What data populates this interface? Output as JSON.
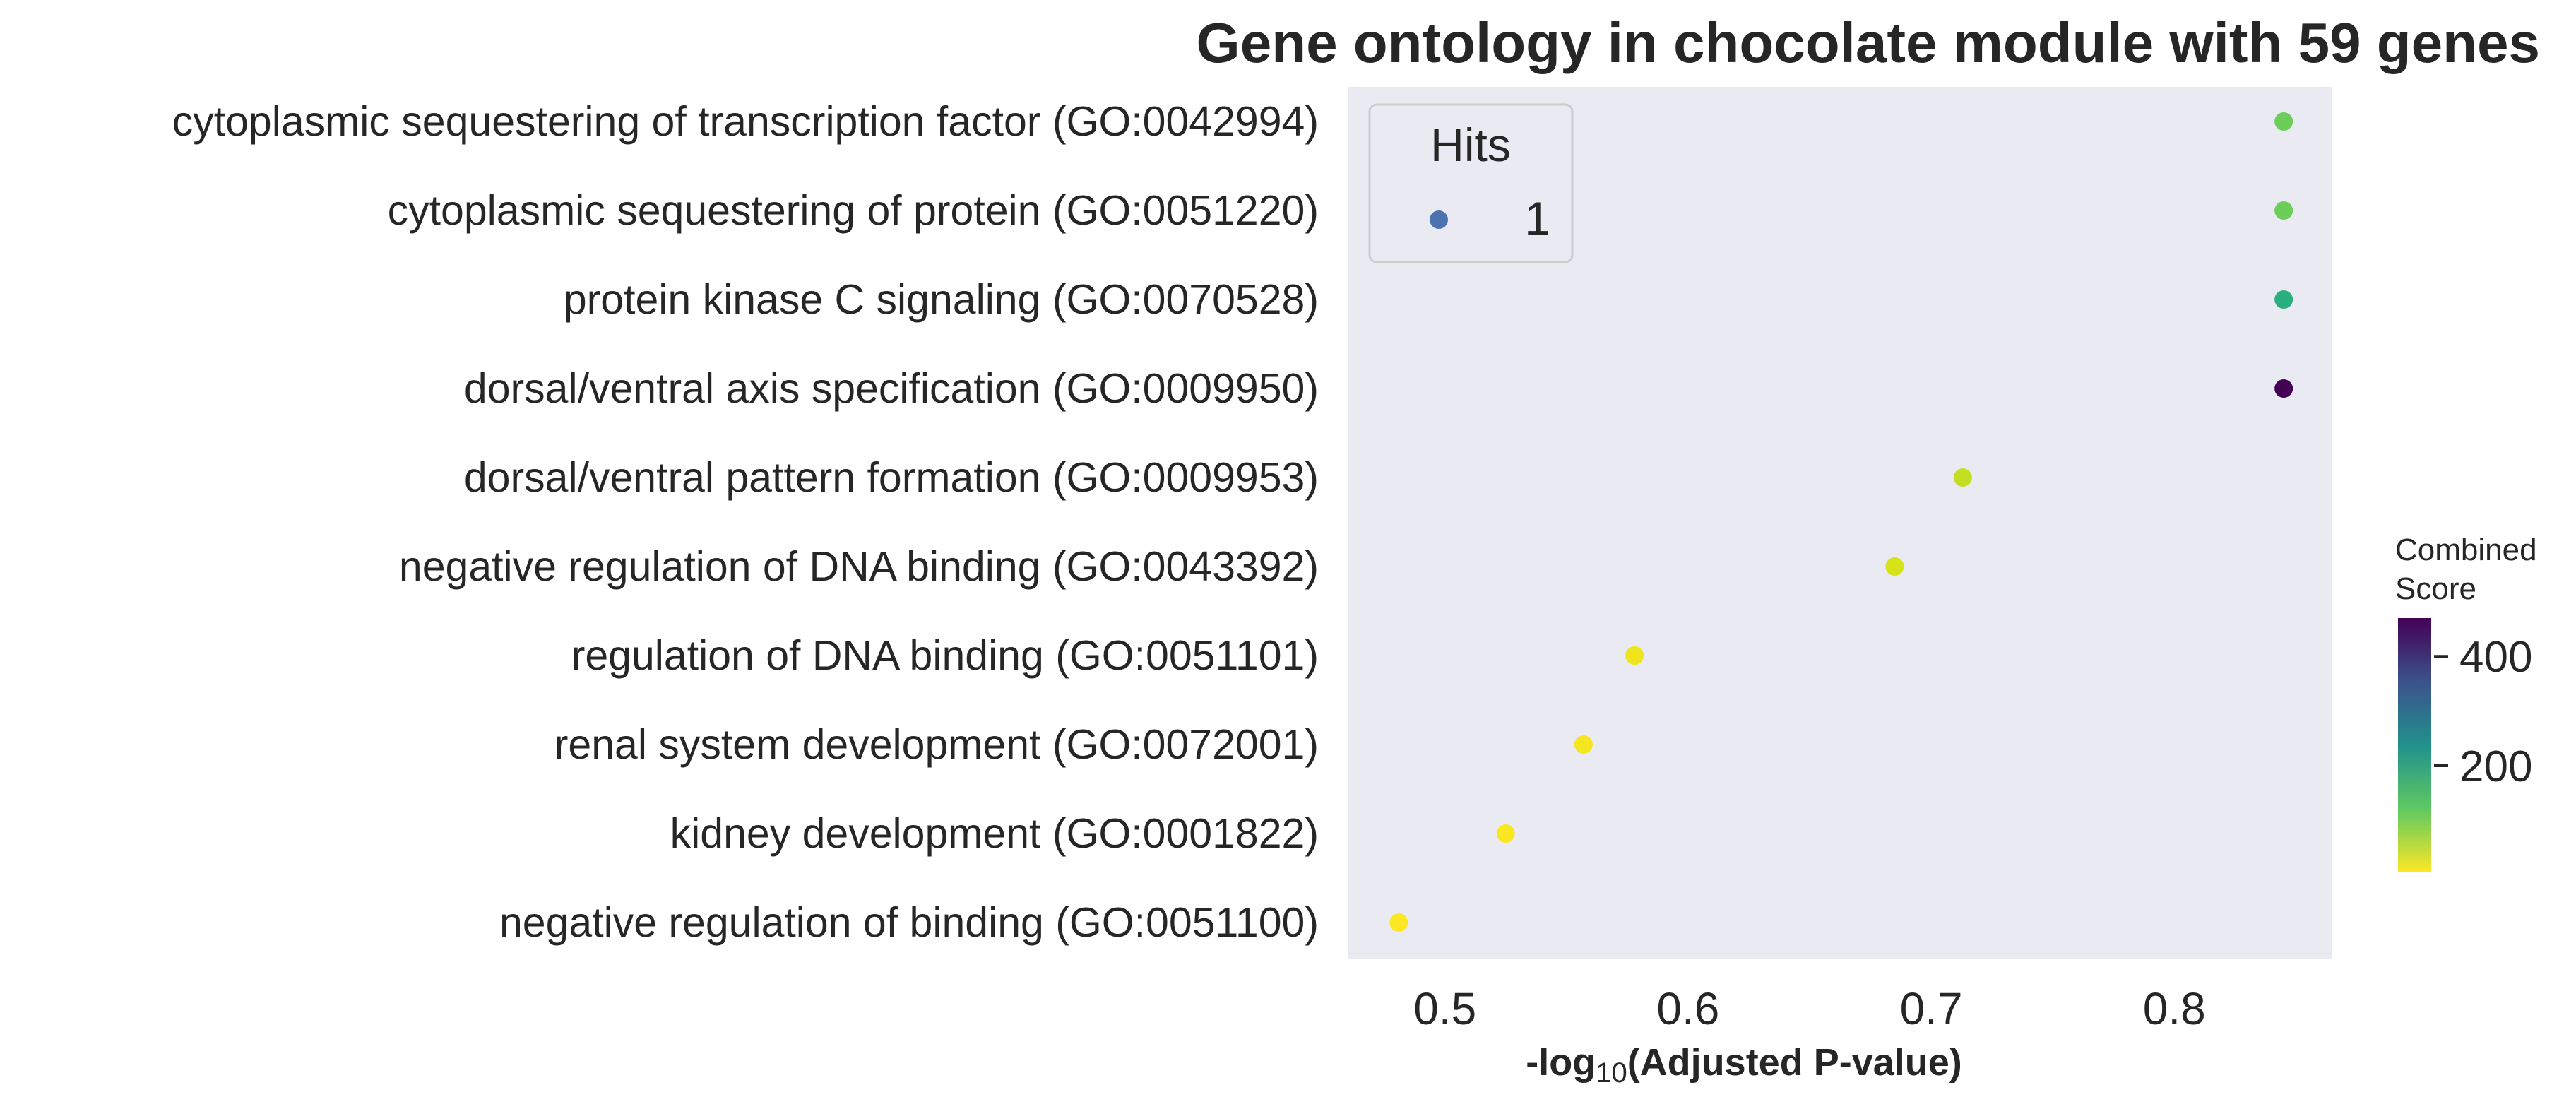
{
  "chart_data": {
    "type": "scatter",
    "title": "Gene ontology in chocolate module with 59 genes",
    "xlabel_main": "-log",
    "xlabel_sub": "10",
    "xlabel_rest": "(Adjusted P-value)",
    "xlim": [
      0.46,
      0.865
    ],
    "xticks": [
      0.5,
      0.6,
      0.7,
      0.8
    ],
    "xtick_labels": [
      "0.5",
      "0.6",
      "0.7",
      "0.8"
    ],
    "grid": false,
    "background": "#eaeaf2",
    "categories": [
      "cytoplasmic sequestering of transcription factor (GO:0042994)",
      "cytoplasmic sequestering of protein (GO:0051220)",
      "protein kinase C signaling (GO:0070528)",
      "dorsal/ventral axis specification (GO:0009950)",
      "dorsal/ventral pattern formation (GO:0009953)",
      "negative regulation of DNA binding (GO:0043392)",
      "regulation of DNA binding (GO:0051101)",
      "renal system development (GO:0072001)",
      "kidney development (GO:0001822)",
      "negative regulation of binding (GO:0051100)"
    ],
    "x": [
      0.845,
      0.845,
      0.845,
      0.845,
      0.713,
      0.685,
      0.578,
      0.557,
      0.525,
      0.481
    ],
    "colors": [
      "#6cce59",
      "#6cce59",
      "#2ab07f",
      "#440154",
      "#c2df23",
      "#d8e219",
      "#f0e51c",
      "#f5e61f",
      "#f9e721",
      "#fde725"
    ],
    "hits": [
      1,
      1,
      1,
      1,
      1,
      1,
      1,
      1,
      1,
      1
    ],
    "legend": {
      "title": "Hits",
      "entry_label": "1",
      "entry_color": "#4c72b0",
      "placement": "upper-left"
    },
    "colorbar": {
      "title_line1": "Combined",
      "title_line2": "Score",
      "ticks": [
        400,
        200
      ],
      "tick_labels": [
        "400",
        "200"
      ],
      "range": [
        5,
        470
      ]
    }
  }
}
